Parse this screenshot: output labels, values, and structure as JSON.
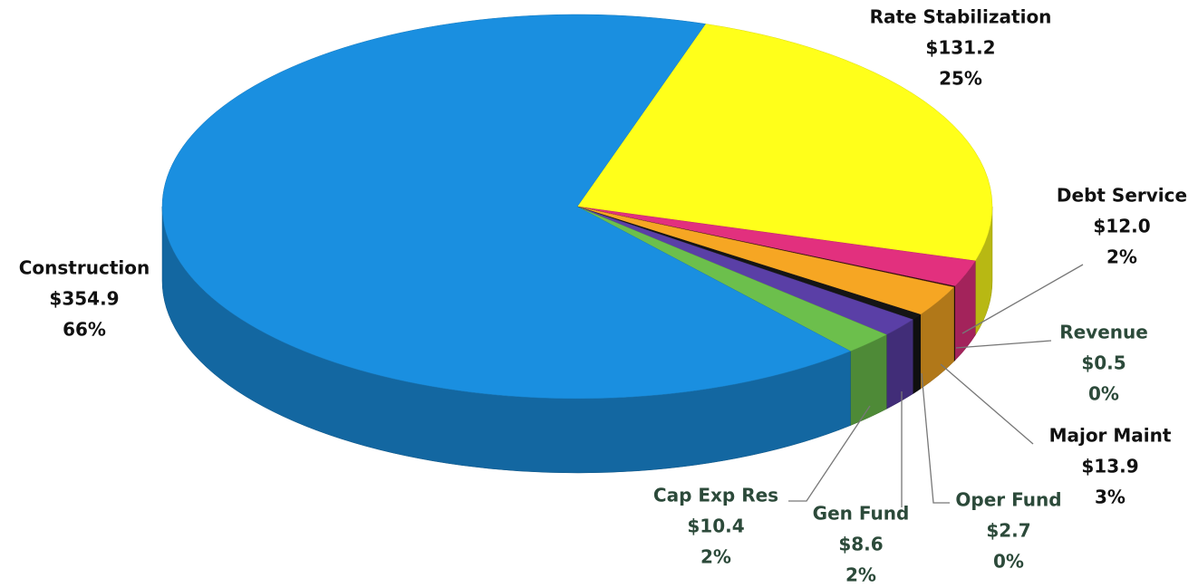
{
  "chart_data": {
    "type": "pie",
    "categories": [
      "Rate Stabilization",
      "Debt Service",
      "Revenue",
      "Major Maint",
      "Oper Fund",
      "Gen Fund",
      "Cap Exp Res",
      "Construction"
    ],
    "values": [
      131.2,
      12.0,
      0.5,
      13.9,
      2.7,
      8.6,
      10.4,
      354.9
    ],
    "value_labels": [
      "$131.2",
      "$12.0",
      "$0.5",
      "$13.9",
      "$2.7",
      "$8.6",
      "$10.4",
      "$354.9"
    ],
    "percents": [
      25,
      2,
      0,
      3,
      0,
      2,
      2,
      66
    ],
    "percent_labels": [
      "25%",
      "2%",
      "0%",
      "3%",
      "0%",
      "2%",
      "2%",
      "66%"
    ],
    "colors": [
      "#ffff1a",
      "#e2307e",
      "#3a1010",
      "#f6a623",
      "#151515",
      "#5a3fa6",
      "#6cbf4c",
      "#1a8fe0"
    ]
  }
}
